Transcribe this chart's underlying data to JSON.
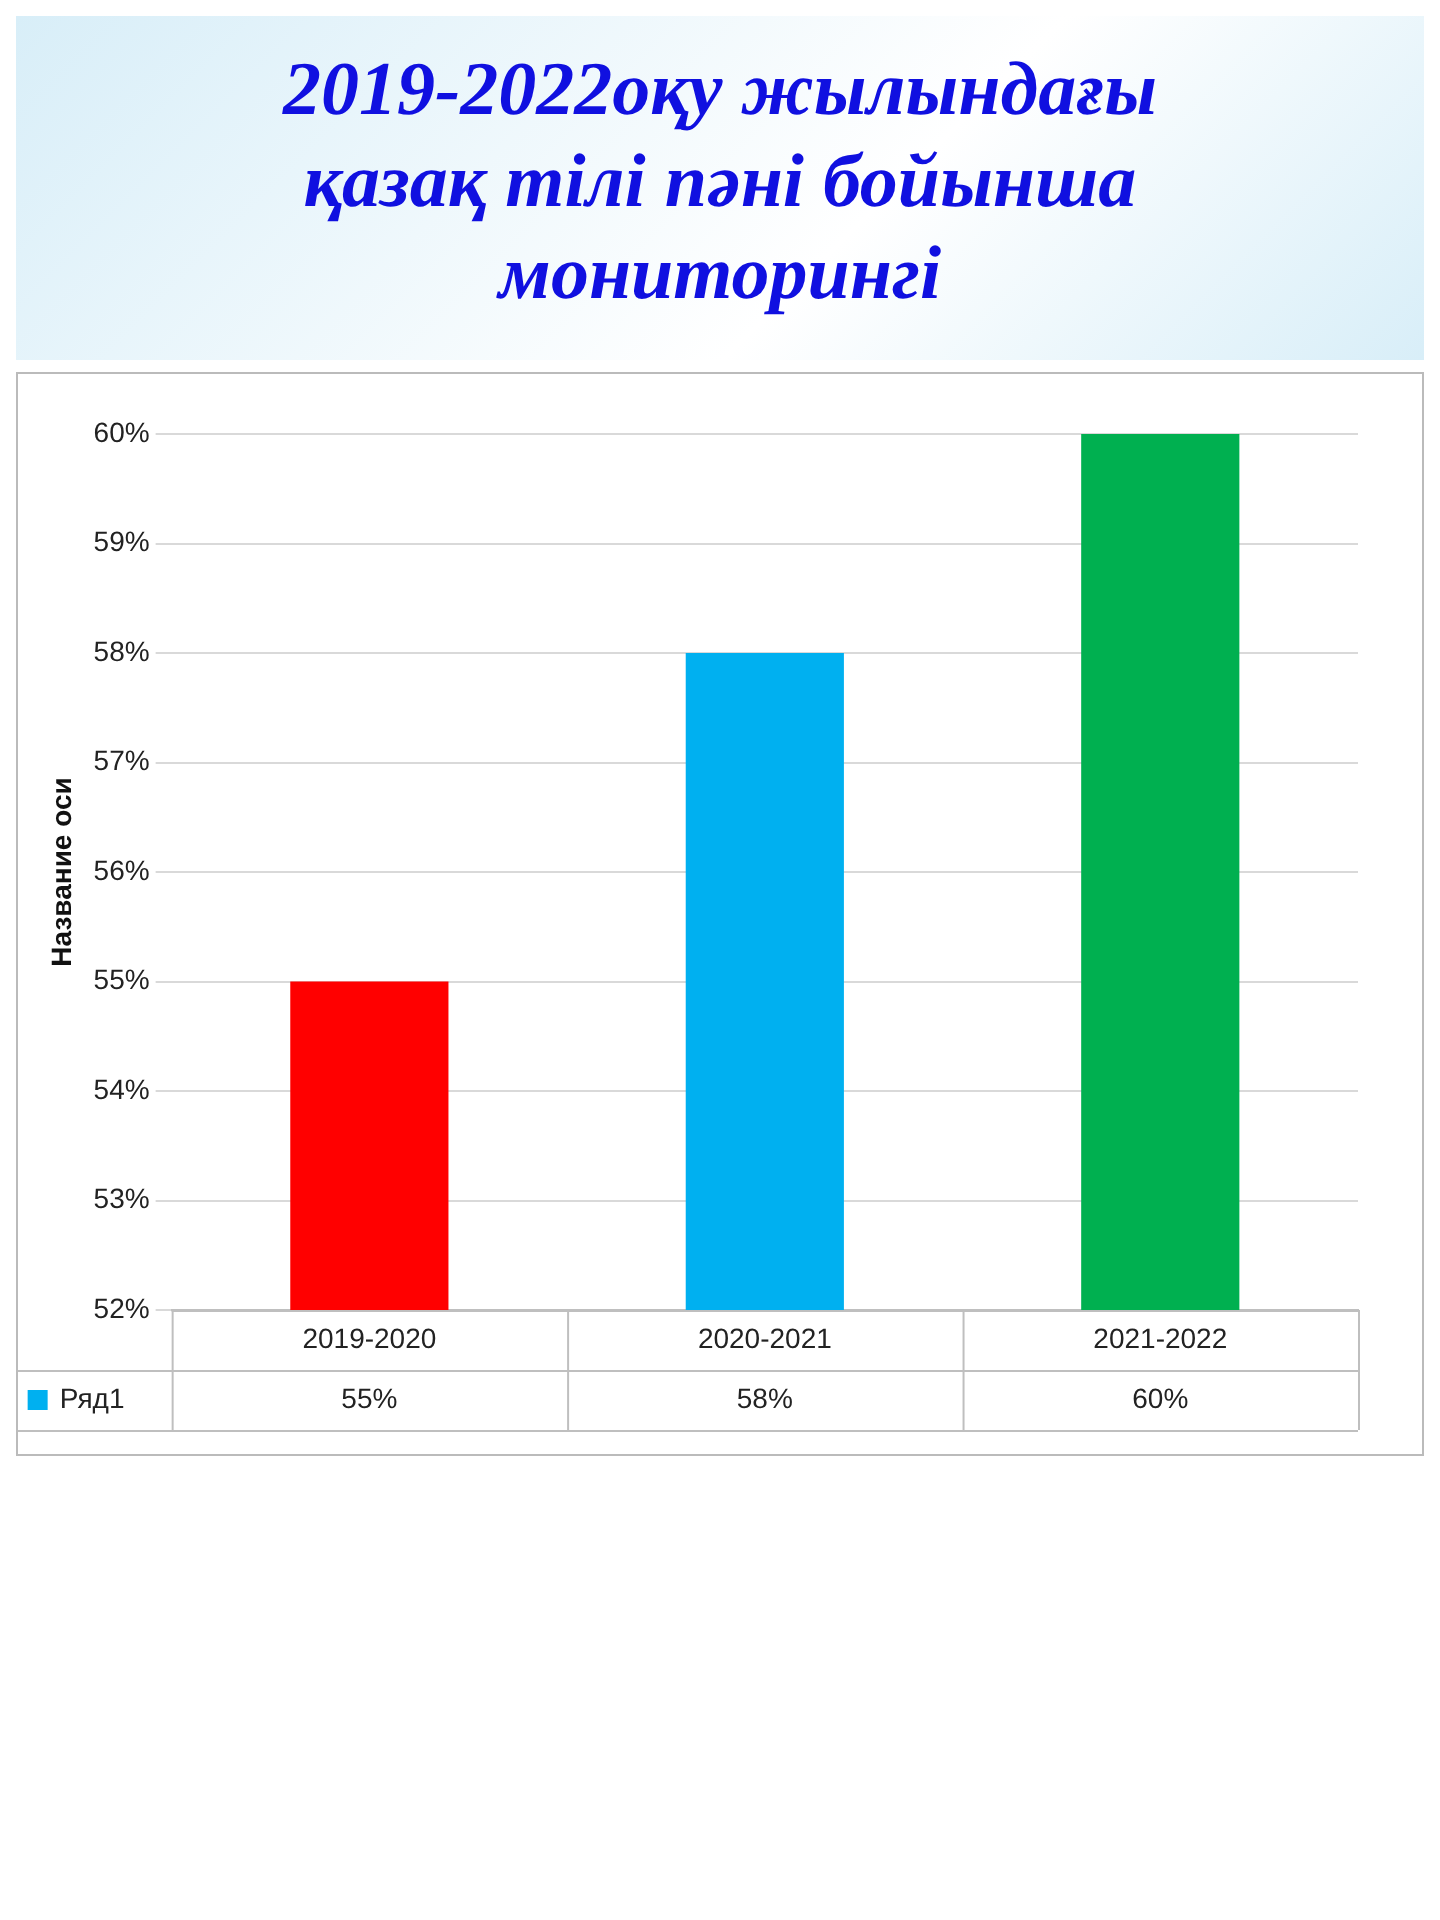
{
  "chart_data": {
    "type": "bar",
    "title": "2019-2022оқу жылындағы қазақ тілі пәні бойынша мониторингі",
    "ylabel": "Название оси",
    "categories": [
      "2019-2020",
      "2020-2021",
      "2021-2022"
    ],
    "series": [
      {
        "name": "Ряд1",
        "color": "#00b0f0",
        "colors": [
          "#ff0000",
          "#00b0f0",
          "#00b050"
        ],
        "values": [
          55,
          58,
          60
        ],
        "value_labels": [
          "55%",
          "58%",
          "60%"
        ]
      }
    ],
    "ylim": [
      52,
      60
    ],
    "yticks": [
      {
        "value": 52,
        "label": "52%"
      },
      {
        "value": 53,
        "label": "53%"
      },
      {
        "value": 54,
        "label": "54%"
      },
      {
        "value": 55,
        "label": "55%"
      },
      {
        "value": 56,
        "label": "56%"
      },
      {
        "value": 57,
        "label": "57%"
      },
      {
        "value": 58,
        "label": "58%"
      },
      {
        "value": 59,
        "label": "59%"
      },
      {
        "value": 60,
        "label": "60%"
      }
    ],
    "grid": "y",
    "legend": "bottom"
  }
}
